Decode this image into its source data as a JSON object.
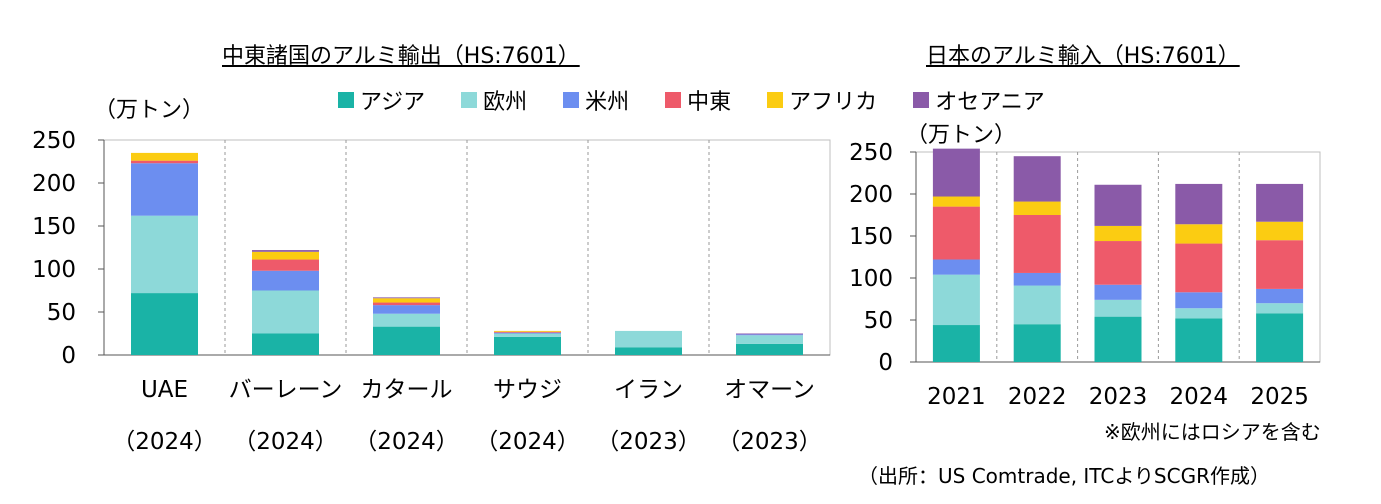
{
  "colors": {
    "asia": "#1ab3a6",
    "europe": "#8dd9d9",
    "america": "#6c8ef0",
    "middle_east": "#ee5a6a",
    "africa": "#fbcc12",
    "oceania": "#8a5aa8"
  },
  "legend": [
    {
      "key": "asia",
      "label": "アジア"
    },
    {
      "key": "europe",
      "label": "欧州"
    },
    {
      "key": "america",
      "label": "米州"
    },
    {
      "key": "middle_east",
      "label": "中東"
    },
    {
      "key": "africa",
      "label": "アフリカ"
    },
    {
      "key": "oceania",
      "label": "オセアニア"
    }
  ],
  "notes": {
    "russia": "※欧州にはロシアを含む",
    "source": "（出所：US Comtrade, ITCよりSCGR作成）"
  },
  "chart_data": [
    {
      "type": "bar",
      "stacked": true,
      "title": "中東諸国のアルミ輸出（HS:7601）",
      "ylabel": "（万トン）",
      "ylim": [
        0,
        250
      ],
      "yticks": [
        0,
        50,
        100,
        150,
        200,
        250
      ],
      "grid": "vertical-dashed",
      "categories": [
        {
          "name": "UAE",
          "year": "（2024）"
        },
        {
          "name": "バーレーン",
          "year": "（2024）"
        },
        {
          "name": "カタール",
          "year": "（2024）"
        },
        {
          "name": "サウジ",
          "year": "（2024）"
        },
        {
          "name": "イラン",
          "year": "（2023）"
        },
        {
          "name": "オマーン",
          "year": "（2023）"
        }
      ],
      "series": [
        {
          "key": "asia",
          "name": "アジア",
          "values": [
            72,
            25,
            33,
            21,
            9,
            13
          ]
        },
        {
          "key": "europe",
          "name": "欧州",
          "values": [
            90,
            50,
            15,
            4,
            19,
            10
          ]
        },
        {
          "key": "america",
          "name": "米州",
          "values": [
            61,
            23,
            10,
            1,
            0,
            1
          ]
        },
        {
          "key": "middle_east",
          "name": "中東",
          "values": [
            3,
            13,
            3,
            1,
            0,
            0
          ]
        },
        {
          "key": "africa",
          "name": "アフリカ",
          "values": [
            9,
            9,
            5,
            1,
            0,
            0
          ]
        },
        {
          "key": "oceania",
          "name": "オセアニア",
          "values": [
            0,
            2,
            1,
            0,
            0,
            1
          ]
        }
      ]
    },
    {
      "type": "bar",
      "stacked": true,
      "title": "日本のアルミ輸入（HS:7601）",
      "ylabel": "（万トン）",
      "ylim": [
        0,
        250
      ],
      "yticks": [
        0,
        50,
        100,
        150,
        200,
        250
      ],
      "grid": "vertical-dashed",
      "categories": [
        {
          "name": "2021",
          "year": ""
        },
        {
          "name": "2022",
          "year": ""
        },
        {
          "name": "2023",
          "year": ""
        },
        {
          "name": "2024",
          "year": ""
        },
        {
          "name": "2025",
          "year": ""
        }
      ],
      "series": [
        {
          "key": "asia",
          "name": "アジア",
          "values": [
            44,
            45,
            54,
            52,
            58
          ]
        },
        {
          "key": "europe",
          "name": "欧州",
          "values": [
            60,
            46,
            20,
            12,
            12
          ]
        },
        {
          "key": "america",
          "name": "米州",
          "values": [
            18,
            15,
            18,
            19,
            17
          ]
        },
        {
          "key": "middle_east",
          "name": "中東",
          "values": [
            63,
            69,
            52,
            58,
            58
          ]
        },
        {
          "key": "africa",
          "name": "アフリカ",
          "values": [
            12,
            16,
            18,
            23,
            22
          ]
        },
        {
          "key": "oceania",
          "name": "オセアニア",
          "values": [
            57,
            54,
            49,
            48,
            45
          ]
        }
      ]
    }
  ]
}
